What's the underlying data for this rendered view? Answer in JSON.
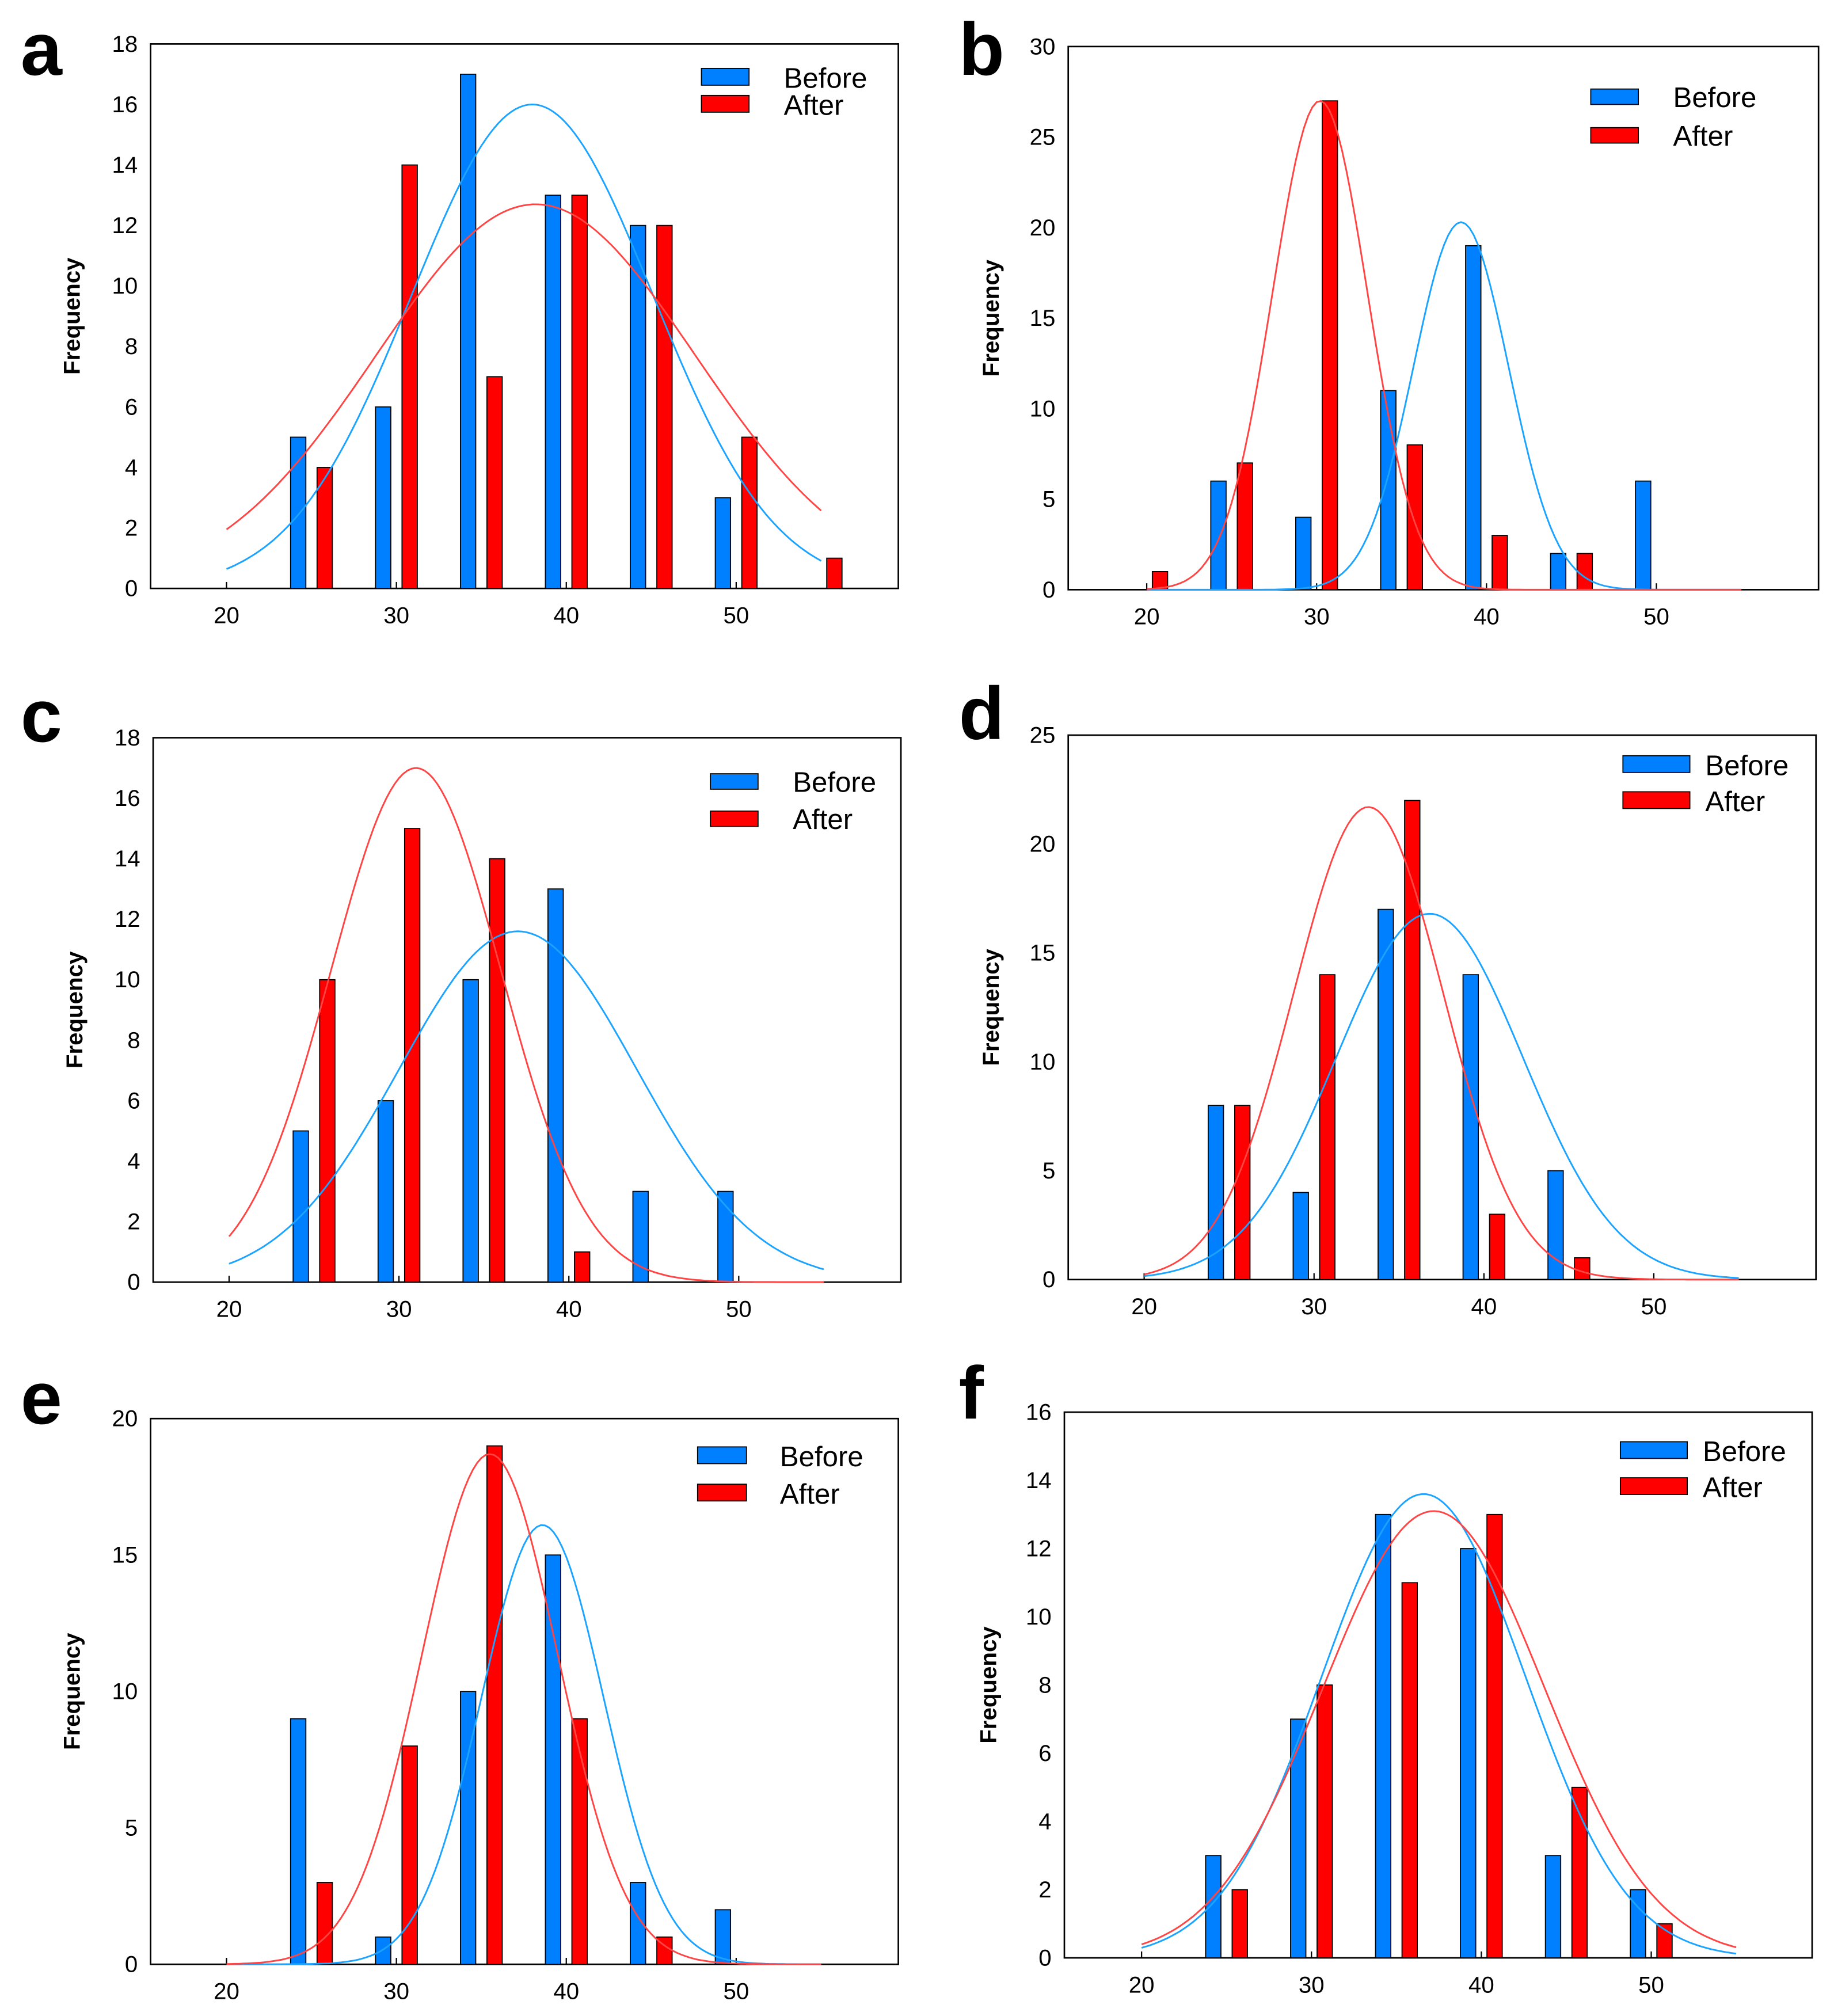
{
  "colors": {
    "before": "#0080ff",
    "after": "#ff0000",
    "before_curve": "#1aa3ff",
    "after_curve": "#ff4444"
  },
  "chart_data": [
    {
      "panel": "a",
      "type": "bar",
      "ylabel": "Frequency",
      "xlabel": "",
      "ylim": [
        0,
        18
      ],
      "yticks": [
        0,
        2,
        4,
        6,
        8,
        10,
        12,
        14,
        16,
        18
      ],
      "xticks": [
        20,
        30,
        40,
        50
      ],
      "legend": "top-right",
      "series": [
        {
          "name": "Before",
          "bins": [
            25,
            30,
            35,
            40,
            45,
            50
          ],
          "values": [
            5,
            6,
            17,
            13,
            12,
            3
          ],
          "fit": {
            "mean": 38,
            "sd": 7.1,
            "peak": 16
          }
        },
        {
          "name": "After",
          "bins": [
            25,
            30,
            35,
            40,
            45,
            50,
            55
          ],
          "values": [
            4,
            14,
            7,
            13,
            12,
            5,
            1
          ],
          "fit": {
            "mean": 38.2,
            "sd": 9.4,
            "peak": 12.7
          }
        }
      ]
    },
    {
      "panel": "b",
      "type": "bar",
      "ylabel": "Frequency",
      "xlabel": "",
      "ylim": [
        0,
        30
      ],
      "yticks": [
        0,
        5,
        10,
        15,
        20,
        25,
        30
      ],
      "xticks": [
        20,
        30,
        40,
        50
      ],
      "legend": "top-right",
      "series": [
        {
          "name": "Before",
          "bins": [
            25,
            30,
            35,
            40,
            45,
            50
          ],
          "values": [
            6,
            4,
            11,
            19,
            2,
            6
          ],
          "fit": {
            "mean": 38.5,
            "sd": 2.8,
            "peak": 20.3
          }
        },
        {
          "name": "After",
          "bins": [
            20,
            25,
            30,
            35,
            40,
            45
          ],
          "values": [
            1,
            7,
            27,
            8,
            3,
            2
          ],
          "fit": {
            "mean": 30.2,
            "sd": 2.8,
            "peak": 27
          }
        }
      ]
    },
    {
      "panel": "c",
      "type": "bar",
      "ylabel": "Frequency",
      "xlabel": "",
      "ylim": [
        0,
        18
      ],
      "yticks": [
        0,
        2,
        4,
        6,
        8,
        10,
        12,
        14,
        16,
        18
      ],
      "xticks": [
        20,
        30,
        40,
        50
      ],
      "legend": "top-right",
      "series": [
        {
          "name": "Before",
          "bins": [
            25,
            30,
            35,
            40,
            45,
            50
          ],
          "values": [
            5,
            6,
            10,
            13,
            3,
            3
          ],
          "fit": {
            "mean": 37,
            "sd": 7,
            "peak": 11.6
          }
        },
        {
          "name": "After",
          "bins": [
            25,
            30,
            35,
            40
          ],
          "values": [
            10,
            15,
            14,
            1
          ],
          "fit": {
            "mean": 31,
            "sd": 5,
            "peak": 17
          }
        }
      ]
    },
    {
      "panel": "d",
      "type": "bar",
      "ylabel": "Frequency",
      "xlabel": "",
      "ylim": [
        0,
        25
      ],
      "yticks": [
        0,
        5,
        10,
        15,
        20,
        25
      ],
      "xticks": [
        20,
        30,
        40,
        50
      ],
      "legend": "top-right",
      "series": [
        {
          "name": "Before",
          "bins": [
            25,
            30,
            35,
            40,
            45
          ],
          "values": [
            8,
            4,
            17,
            14,
            5
          ],
          "fit": {
            "mean": 36.8,
            "sd": 5.5,
            "peak": 16.8
          }
        },
        {
          "name": "After",
          "bins": [
            25,
            30,
            35,
            40,
            45
          ],
          "values": [
            8,
            14,
            22,
            3,
            1
          ],
          "fit": {
            "mean": 33.2,
            "sd": 4.4,
            "peak": 21.7
          }
        }
      ]
    },
    {
      "panel": "e",
      "type": "bar",
      "ylabel": "Frequency",
      "xlabel": "",
      "ylim": [
        0,
        20
      ],
      "yticks": [
        0,
        5,
        10,
        15,
        20
      ],
      "xticks": [
        20,
        30,
        40,
        50
      ],
      "legend": "top-right",
      "series": [
        {
          "name": "Before",
          "bins": [
            25,
            30,
            35,
            40,
            45,
            50
          ],
          "values": [
            9,
            1,
            10,
            15,
            3,
            2
          ],
          "fit": {
            "mean": 38.6,
            "sd": 3.6,
            "peak": 16.1
          }
        },
        {
          "name": "After",
          "bins": [
            25,
            30,
            35,
            40,
            45
          ],
          "values": [
            3,
            8,
            19,
            9,
            1
          ],
          "fit": {
            "mean": 35.5,
            "sd": 4,
            "peak": 18.7
          }
        }
      ]
    },
    {
      "panel": "f",
      "type": "bar",
      "ylabel": "Frequency",
      "xlabel": "",
      "ylim": [
        0,
        16
      ],
      "yticks": [
        0,
        2,
        4,
        6,
        8,
        10,
        12,
        14,
        16
      ],
      "xticks": [
        20,
        30,
        40,
        50
      ],
      "legend": "top-right",
      "series": [
        {
          "name": "Before",
          "bins": [
            25,
            30,
            35,
            40,
            45,
            50
          ],
          "values": [
            3,
            7,
            13,
            12,
            3,
            2
          ],
          "fit": {
            "mean": 36.6,
            "sd": 6,
            "peak": 13.6
          }
        },
        {
          "name": "After",
          "bins": [
            25,
            30,
            35,
            40,
            45,
            50
          ],
          "values": [
            2,
            8,
            11,
            13,
            5,
            1
          ],
          "fit": {
            "mean": 37.2,
            "sd": 6.5,
            "peak": 13.1
          }
        }
      ]
    }
  ]
}
